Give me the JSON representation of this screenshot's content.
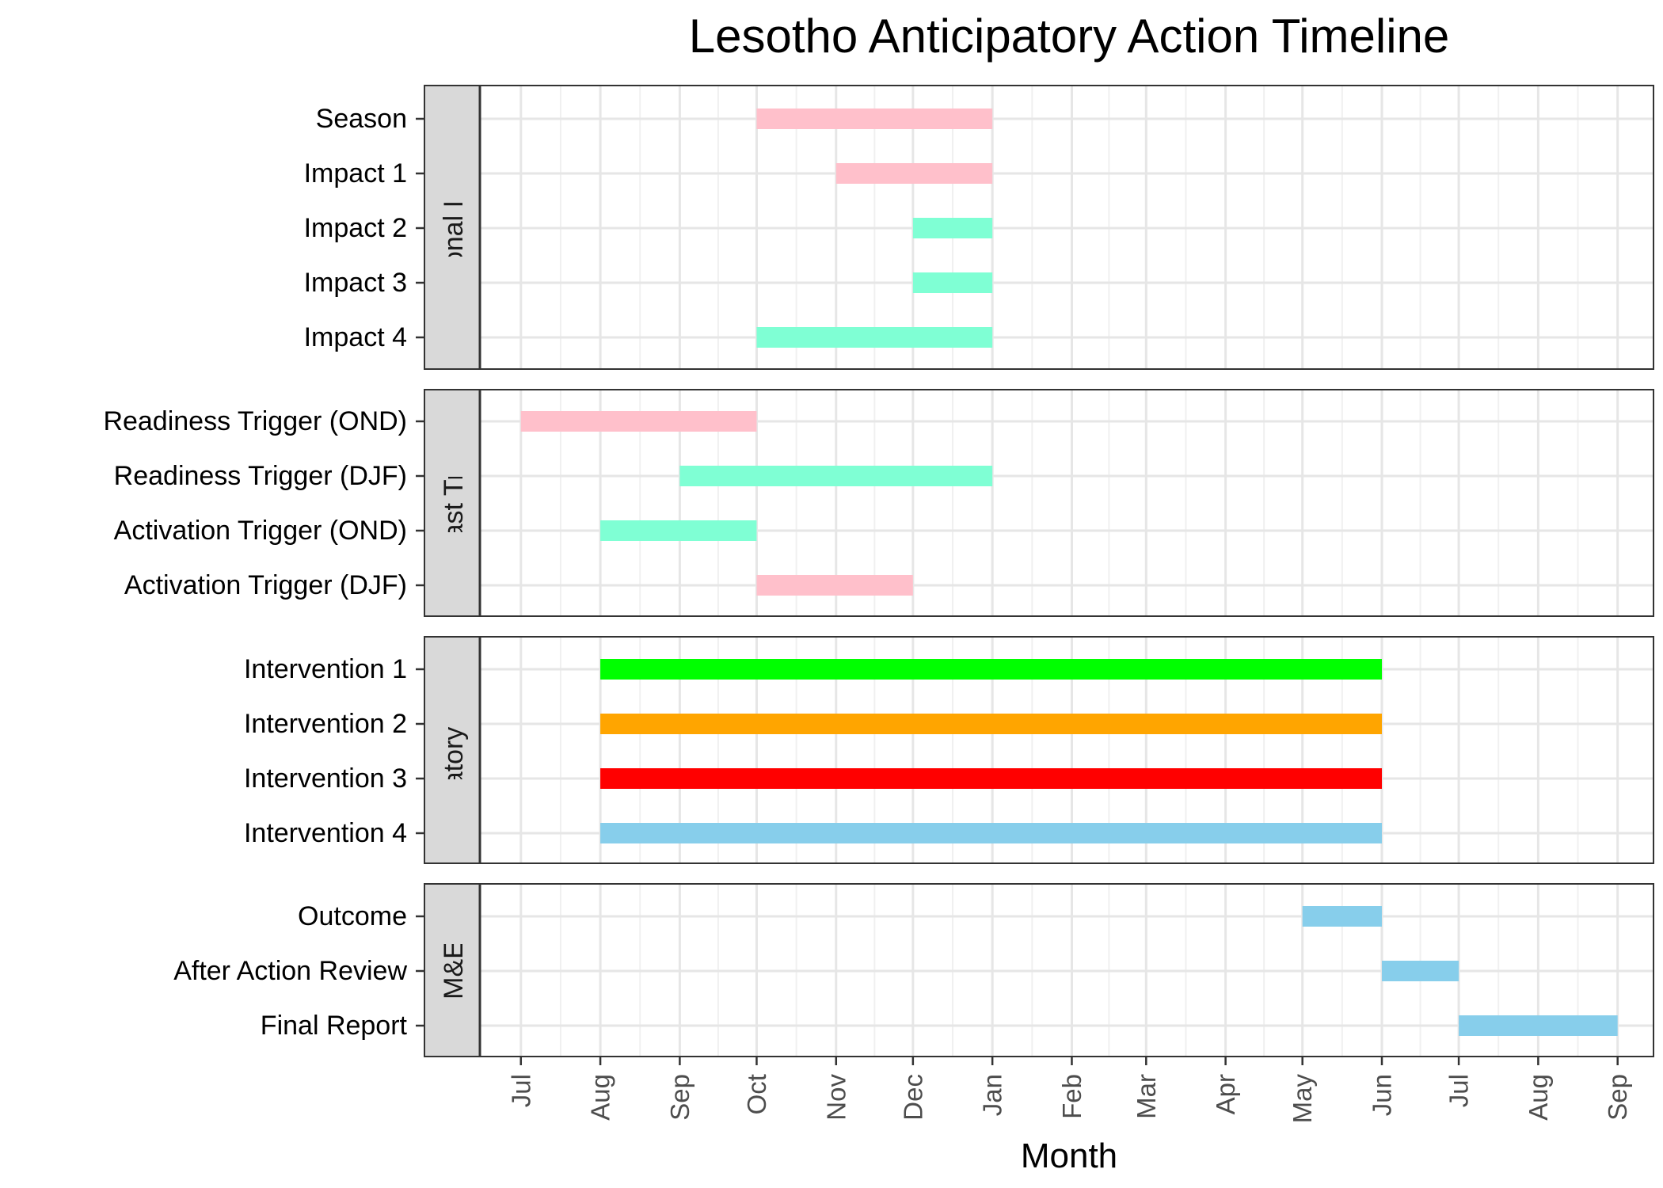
{
  "chart_data": {
    "type": "gantt",
    "title": "Lesotho Anticipatory Action Timeline",
    "xlabel": "Month",
    "ylabel": "",
    "x_ticks": [
      "2023-07-01",
      "2023-08-01",
      "2023-09-01",
      "2023-10-01",
      "2023-11-01",
      "2023-12-01",
      "2024-01-01",
      "2024-02-01",
      "2024-03-01",
      "2024-04-01",
      "2024-05-01",
      "2024-06-01",
      "2024-07-01",
      "2024-08-01",
      "2024-09-01"
    ],
    "x_tick_labels": [
      "Jul",
      "Aug",
      "Sep",
      "Oct",
      "Nov",
      "Dec",
      "Jan",
      "Feb",
      "Mar",
      "Apr",
      "May",
      "Jun",
      "Jul",
      "Aug",
      "Sep"
    ],
    "xlim": [
      "2023-06-15",
      "2024-09-15"
    ],
    "grid": true,
    "facets": [
      {
        "label": "Seasonal Impact",
        "tasks": [
          {
            "name": "Season",
            "start": "2023-10-01",
            "end": "2024-01-01",
            "color": "#FFC0CB"
          },
          {
            "name": "Impact 1",
            "start": "2023-11-01",
            "end": "2024-01-01",
            "color": "#FFC0CB"
          },
          {
            "name": "Impact 2",
            "start": "2023-12-01",
            "end": "2024-01-01",
            "color": "#7FFFD4"
          },
          {
            "name": "Impact 3",
            "start": "2023-12-01",
            "end": "2024-01-01",
            "color": "#7FFFD4"
          },
          {
            "name": "Impact 4",
            "start": "2023-10-01",
            "end": "2024-01-01",
            "color": "#7FFFD4"
          }
        ]
      },
      {
        "label": "Forecast Triggers",
        "tasks": [
          {
            "name": "Readiness Trigger (OND)",
            "start": "2023-07-01",
            "end": "2023-10-01",
            "color": "#FFC0CB"
          },
          {
            "name": "Readiness Trigger (DJF)",
            "start": "2023-09-01",
            "end": "2024-01-01",
            "color": "#7FFFD4"
          },
          {
            "name": "Activation Trigger (OND)",
            "start": "2023-08-01",
            "end": "2023-10-01",
            "color": "#7FFFD4"
          },
          {
            "name": "Activation Trigger (DJF)",
            "start": "2023-10-01",
            "end": "2023-12-01",
            "color": "#FFC0CB"
          }
        ]
      },
      {
        "label": "Anticipatory Actions",
        "tasks": [
          {
            "name": "Intervention 1",
            "start": "2023-08-01",
            "end": "2024-06-01",
            "color": "#00FF00"
          },
          {
            "name": "Intervention 2",
            "start": "2023-08-01",
            "end": "2024-06-01",
            "color": "#FFA500"
          },
          {
            "name": "Intervention 3",
            "start": "2023-08-01",
            "end": "2024-06-01",
            "color": "#FF0000"
          },
          {
            "name": "Intervention 4",
            "start": "2023-08-01",
            "end": "2024-06-01",
            "color": "#87CEEB"
          }
        ]
      },
      {
        "label": "M&E",
        "tasks": [
          {
            "name": "Outcome",
            "start": "2024-05-01",
            "end": "2024-06-01",
            "color": "#87CEEB"
          },
          {
            "name": "After Action Review",
            "start": "2024-06-01",
            "end": "2024-07-01",
            "color": "#87CEEB"
          },
          {
            "name": "Final Report",
            "start": "2024-07-01",
            "end": "2024-09-01",
            "color": "#87CEEB"
          }
        ]
      }
    ]
  }
}
